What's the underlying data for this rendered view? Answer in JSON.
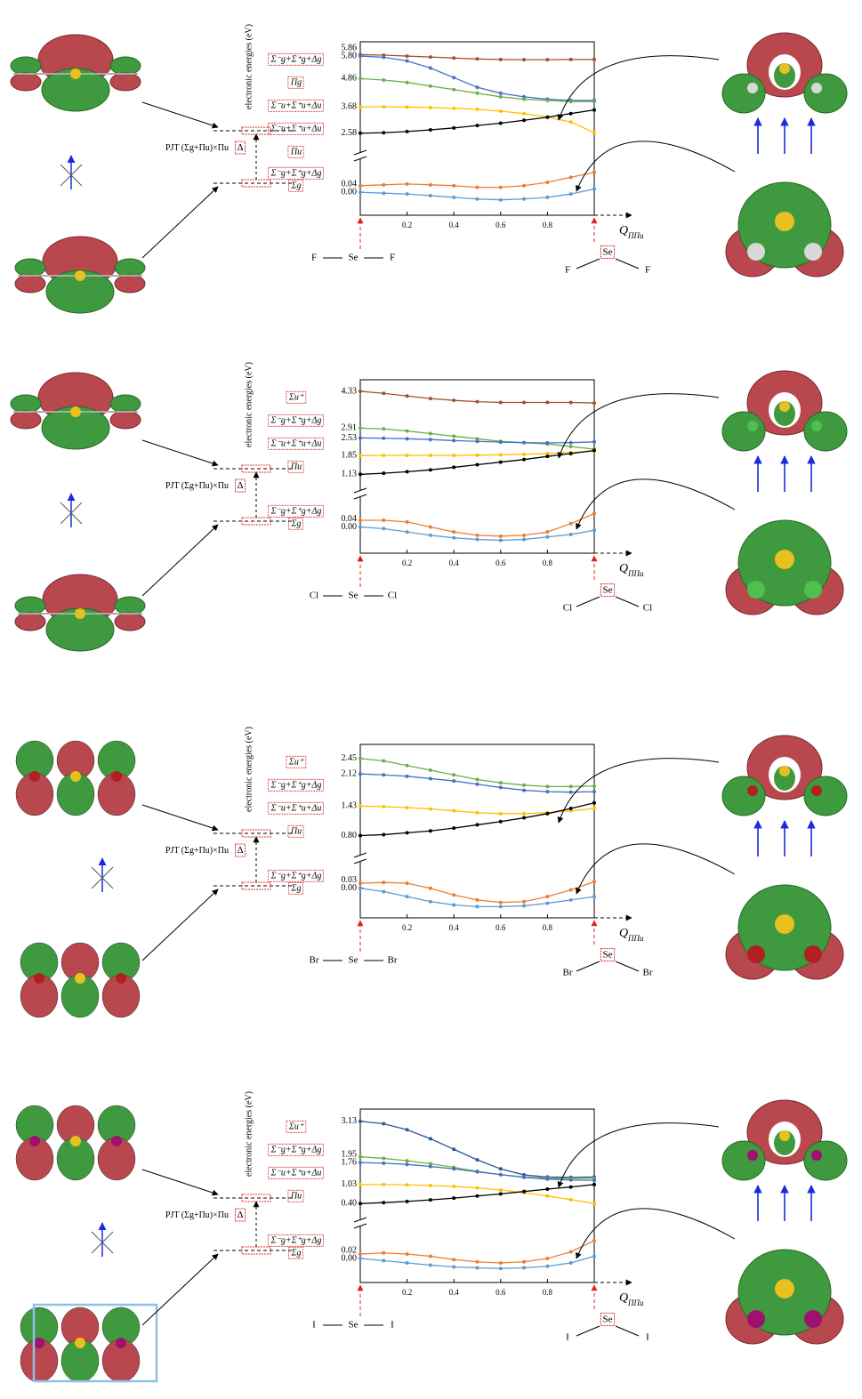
{
  "chart_data": [
    {
      "type": "line",
      "ylabel": "electronic energies (eV)",
      "xlabel": "Q",
      "xlabel_sub": "ΠΠu",
      "x": [
        0,
        0.1,
        0.2,
        0.3,
        0.4,
        0.5,
        0.6,
        0.7,
        0.8,
        0.9,
        1.0
      ],
      "xlim": [
        0,
        1
      ],
      "xticks": [
        0.2,
        0.4,
        0.6,
        0.8
      ],
      "ylim": [
        2.2,
        6.1
      ],
      "yticks": [
        2.58,
        3.68,
        4.86,
        {
          "value": 5.8,
          "label": "5.80"
        },
        5.86
      ],
      "y2lim": [
        -0.1,
        0.14
      ],
      "y2ticks": [
        {
          "value": 0,
          "label": "0.00"
        },
        0.04
      ],
      "series": [
        {
          "color": "#a0522d",
          "values": [
            5.86,
            5.84,
            5.8,
            5.76,
            5.72,
            5.68,
            5.66,
            5.65,
            5.65,
            5.66,
            5.66
          ]
        },
        {
          "color": "#4472c4",
          "values": [
            5.8,
            5.75,
            5.6,
            5.3,
            4.9,
            4.5,
            4.25,
            4.1,
            4.0,
            3.95,
            3.95
          ]
        },
        {
          "color": "#70ad47",
          "values": [
            4.86,
            4.8,
            4.7,
            4.55,
            4.4,
            4.25,
            4.1,
            4.0,
            3.95,
            3.9,
            3.9
          ]
        },
        {
          "color": "#ffc000",
          "values": [
            3.68,
            3.68,
            3.67,
            3.65,
            3.62,
            3.58,
            3.5,
            3.4,
            3.25,
            3.05,
            2.6
          ]
        },
        {
          "color": "#000000",
          "values": [
            2.58,
            2.6,
            2.65,
            2.72,
            2.8,
            2.9,
            3.0,
            3.12,
            3.25,
            3.4,
            3.55
          ]
        },
        {
          "color": "#ed7d31",
          "axis": "y2",
          "values": [
            0.04,
            0.045,
            0.05,
            0.045,
            0.04,
            0.03,
            0.03,
            0.04,
            0.06,
            0.09,
            0.12
          ]
        },
        {
          "color": "#5b9bd5",
          "axis": "y2",
          "values": [
            0.0,
            -0.005,
            -0.01,
            -0.02,
            -0.03,
            -0.04,
            -0.045,
            -0.04,
            -0.03,
            -0.01,
            0.02
          ]
        }
      ],
      "state_labels": [
        "Σ⁻g+Σ⁺g+Δg",
        "Πg",
        "Σ⁻u+Σ⁺u+Δu",
        "Σ⁻u+Σ⁺u+Δu",
        "Πu"
      ],
      "state_labels_lower": [
        "Σ⁻g+Σ⁺g+Δg",
        "Σg"
      ],
      "pjt_label": "PJT (Σg+Πu)×Πu",
      "gap_label": "Δ",
      "linear_molecule": [
        "F",
        "Se",
        "F"
      ],
      "bent_molecule": [
        "Se",
        "F",
        "F"
      ]
    },
    {
      "type": "line",
      "ylabel": "electronic energies (eV)",
      "xlabel": "Q",
      "xlabel_sub": "ΠΠu",
      "x": [
        0,
        0.1,
        0.2,
        0.3,
        0.4,
        0.5,
        0.6,
        0.7,
        0.8,
        0.9,
        1.0
      ],
      "xlim": [
        0,
        1
      ],
      "xticks": [
        0.2,
        0.4,
        0.6,
        0.8
      ],
      "ylim": [
        0.9,
        4.5
      ],
      "yticks": [
        1.13,
        1.85,
        2.53,
        2.91,
        4.33
      ],
      "y2lim": [
        -0.12,
        0.12
      ],
      "y2ticks": [
        {
          "value": 0,
          "label": "0.00"
        },
        0.04
      ],
      "series": [
        {
          "color": "#a0522d",
          "values": [
            4.33,
            4.25,
            4.15,
            4.05,
            3.98,
            3.93,
            3.9,
            3.9,
            3.9,
            3.9,
            3.88
          ]
        },
        {
          "color": "#70ad47",
          "values": [
            2.91,
            2.88,
            2.8,
            2.7,
            2.6,
            2.5,
            2.4,
            2.35,
            2.3,
            2.2,
            2.1
          ]
        },
        {
          "color": "#4472c4",
          "values": [
            2.53,
            2.52,
            2.5,
            2.47,
            2.43,
            2.4,
            2.37,
            2.35,
            2.34,
            2.35,
            2.38
          ]
        },
        {
          "color": "#ffc000",
          "values": [
            1.85,
            1.86,
            1.86,
            1.86,
            1.86,
            1.87,
            1.88,
            1.9,
            1.93,
            1.97,
            2.02
          ]
        },
        {
          "color": "#000000",
          "values": [
            1.13,
            1.17,
            1.23,
            1.3,
            1.4,
            1.5,
            1.6,
            1.7,
            1.82,
            1.93,
            2.05
          ]
        },
        {
          "color": "#ed7d31",
          "axis": "y2",
          "values": [
            0.04,
            0.04,
            0.03,
            0.0,
            -0.03,
            -0.05,
            -0.055,
            -0.05,
            -0.03,
            0.02,
            0.08
          ]
        },
        {
          "color": "#5b9bd5",
          "axis": "y2",
          "values": [
            0.0,
            -0.01,
            -0.03,
            -0.05,
            -0.065,
            -0.075,
            -0.08,
            -0.075,
            -0.06,
            -0.045,
            -0.02
          ]
        }
      ],
      "state_labels": [
        "Σu⁺",
        "Σ⁻g+Σ⁺g+Δg",
        "Σ⁻u+Σ⁺u+Δu",
        "Πu"
      ],
      "state_labels_lower": [
        "Σ⁻g+Σ⁺g+Δg",
        "Σg"
      ],
      "pjt_label": "PJT (Σg+Πu)×Πu",
      "gap_label": "Δ",
      "linear_molecule": [
        "Cl",
        "Se",
        "Cl"
      ],
      "bent_molecule": [
        "Se",
        "Cl",
        "Cl"
      ]
    },
    {
      "type": "line",
      "ylabel": "electronic energies (eV)",
      "xlabel": "Q",
      "xlabel_sub": "ΠΠu",
      "x": [
        0,
        0.1,
        0.2,
        0.3,
        0.4,
        0.5,
        0.6,
        0.7,
        0.8,
        0.9,
        1.0
      ],
      "xlim": [
        0,
        1
      ],
      "xticks": [
        0.2,
        0.4,
        0.6,
        0.8
      ],
      "ylim": [
        0.6,
        2.6
      ],
      "yticks": [
        {
          "value": 0.8,
          "label": "0.80"
        },
        1.43,
        2.12,
        2.45
      ],
      "y2lim": [
        -0.14,
        0.1
      ],
      "y2ticks": [
        {
          "value": 0,
          "label": "0.00"
        },
        0.03
      ],
      "series": [
        {
          "color": "#70ad47",
          "values": [
            2.45,
            2.4,
            2.3,
            2.2,
            2.1,
            2.0,
            1.93,
            1.88,
            1.85,
            1.85,
            1.86
          ]
        },
        {
          "color": "#4472c4",
          "values": [
            2.12,
            2.1,
            2.07,
            2.02,
            1.97,
            1.9,
            1.83,
            1.77,
            1.74,
            1.73,
            1.74
          ]
        },
        {
          "color": "#ffc000",
          "values": [
            1.43,
            1.42,
            1.4,
            1.37,
            1.33,
            1.29,
            1.27,
            1.27,
            1.29,
            1.33,
            1.38
          ]
        },
        {
          "color": "#000000",
          "values": [
            0.8,
            0.82,
            0.86,
            0.9,
            0.96,
            1.03,
            1.1,
            1.18,
            1.27,
            1.38,
            1.5
          ]
        },
        {
          "color": "#ed7d31",
          "axis": "y2",
          "values": [
            0.03,
            0.035,
            0.03,
            0.0,
            -0.04,
            -0.07,
            -0.085,
            -0.08,
            -0.05,
            -0.01,
            0.04
          ]
        },
        {
          "color": "#5b9bd5",
          "axis": "y2",
          "values": [
            0.0,
            -0.02,
            -0.05,
            -0.08,
            -0.1,
            -0.11,
            -0.11,
            -0.105,
            -0.09,
            -0.07,
            -0.05
          ]
        }
      ],
      "state_labels": [
        "Σu⁺",
        "Σ⁻g+Σ⁺g+Δg",
        "Σ⁻u+Σ⁺u+Δu",
        "Πu"
      ],
      "state_labels_lower": [
        "Σ⁻g+Σ⁺g+Δg",
        "Σg"
      ],
      "pjt_label": "PJT (Σg+Πu)×Πu",
      "gap_label": "Δ",
      "linear_molecule": [
        "Br",
        "Se",
        "Br"
      ],
      "bent_molecule": [
        "Se",
        "Br",
        "Br"
      ]
    },
    {
      "type": "line",
      "ylabel": "electronic energies (eV)",
      "xlabel": "Q",
      "xlabel_sub": "ΠΠu",
      "x": [
        0,
        0.1,
        0.2,
        0.3,
        0.4,
        0.5,
        0.6,
        0.7,
        0.8,
        0.9,
        1.0
      ],
      "xlim": [
        0,
        1
      ],
      "xticks": [
        0.2,
        0.4,
        0.6,
        0.8
      ],
      "ylim": [
        0.2,
        3.3
      ],
      "yticks": [
        {
          "value": 0.4,
          "label": "0.40"
        },
        1.03,
        1.76,
        1.95,
        3.13
      ],
      "y2lim": [
        -0.08,
        0.1
      ],
      "y2ticks": [
        {
          "value": 0,
          "label": "0.00"
        },
        0.02
      ],
      "series": [
        {
          "color": "#2e5597",
          "values": [
            3.13,
            3.05,
            2.85,
            2.55,
            2.2,
            1.85,
            1.55,
            1.35,
            1.28,
            1.27,
            1.28
          ]
        },
        {
          "color": "#70ad47",
          "values": [
            1.95,
            1.9,
            1.82,
            1.72,
            1.6,
            1.47,
            1.36,
            1.28,
            1.24,
            1.23,
            1.24
          ]
        },
        {
          "color": "#4472c4",
          "values": [
            1.76,
            1.74,
            1.7,
            1.63,
            1.55,
            1.45,
            1.36,
            1.27,
            1.21,
            1.18,
            1.17
          ]
        },
        {
          "color": "#ffc000",
          "values": [
            1.03,
            1.03,
            1.02,
            1.0,
            0.97,
            0.92,
            0.85,
            0.76,
            0.65,
            0.53,
            0.4
          ]
        },
        {
          "color": "#000000",
          "values": [
            0.4,
            0.43,
            0.47,
            0.52,
            0.58,
            0.65,
            0.72,
            0.8,
            0.88,
            0.95,
            1.03
          ]
        },
        {
          "color": "#ed7d31",
          "axis": "y2",
          "values": [
            0.02,
            0.025,
            0.02,
            0.01,
            -0.005,
            -0.015,
            -0.02,
            -0.015,
            0.0,
            0.03,
            0.08
          ]
        },
        {
          "color": "#5b9bd5",
          "axis": "y2",
          "values": [
            0.0,
            -0.01,
            -0.02,
            -0.03,
            -0.038,
            -0.042,
            -0.045,
            -0.042,
            -0.035,
            -0.02,
            0.01
          ]
        }
      ],
      "state_labels": [
        "Σu⁺",
        "Σ⁻g+Σ⁺g+Δg",
        "Σ⁻u+Σ⁺u+Δu",
        "Πu"
      ],
      "state_labels_lower": [
        "Σ⁻g+Σ⁺g+Δg",
        "Σg"
      ],
      "pjt_label": "PJT (Σg+Πu)×Πu",
      "gap_label": "Δ",
      "linear_molecule": [
        "I",
        "Se",
        "I"
      ],
      "bent_molecule": [
        "Se",
        "I",
        "I"
      ]
    }
  ]
}
